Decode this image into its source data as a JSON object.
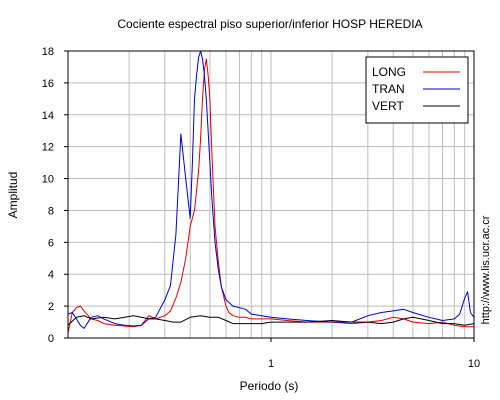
{
  "chart_data": {
    "type": "line",
    "title": "Cociente espectral piso superior/inferior  HOSP HEREDIA",
    "xlabel": "Periodo (s)",
    "ylabel": "Amplitud",
    "xscale": "log",
    "xlim": [
      0.1,
      10
    ],
    "ylim": [
      0,
      18
    ],
    "yticks": [
      0,
      2,
      4,
      6,
      8,
      10,
      12,
      14,
      16,
      18
    ],
    "xticks": [
      1,
      10
    ],
    "grid": true,
    "legend_position": "top-right",
    "watermark": "http://www.lis.ucr.ac.cr",
    "series": [
      {
        "name": "LONG",
        "color": "#e00000",
        "x": [
          0.1,
          0.105,
          0.11,
          0.115,
          0.12,
          0.13,
          0.14,
          0.15,
          0.17,
          0.19,
          0.21,
          0.23,
          0.25,
          0.27,
          0.3,
          0.32,
          0.34,
          0.36,
          0.38,
          0.4,
          0.42,
          0.44,
          0.45,
          0.46,
          0.47,
          0.48,
          0.49,
          0.5,
          0.51,
          0.52,
          0.53,
          0.55,
          0.57,
          0.6,
          0.62,
          0.65,
          0.7,
          0.75,
          0.8,
          0.9,
          1.0,
          1.2,
          1.5,
          2.0,
          2.5,
          3.0,
          3.5,
          4.0,
          4.5,
          5.0,
          6.0,
          7.0,
          8.0,
          9.0,
          10.0
        ],
        "y": [
          0.3,
          1.6,
          1.9,
          2.0,
          1.7,
          1.2,
          1.1,
          0.9,
          0.8,
          0.75,
          0.7,
          0.8,
          1.4,
          1.2,
          1.4,
          1.7,
          2.5,
          3.5,
          5.0,
          7.0,
          8.0,
          10.5,
          12.5,
          15.0,
          16.8,
          17.5,
          16.5,
          15.0,
          12.0,
          9.5,
          7.0,
          4.8,
          3.2,
          2.0,
          1.6,
          1.4,
          1.3,
          1.3,
          1.2,
          1.2,
          1.2,
          1.1,
          1.0,
          1.0,
          0.9,
          1.0,
          1.1,
          1.3,
          1.2,
          1.0,
          0.9,
          1.0,
          0.8,
          0.7,
          0.7
        ]
      },
      {
        "name": "TRAN",
        "color": "#0000cc",
        "x": [
          0.1,
          0.105,
          0.11,
          0.115,
          0.12,
          0.13,
          0.14,
          0.15,
          0.17,
          0.19,
          0.21,
          0.23,
          0.25,
          0.27,
          0.3,
          0.32,
          0.34,
          0.36,
          0.38,
          0.4,
          0.41,
          0.42,
          0.43,
          0.44,
          0.45,
          0.46,
          0.47,
          0.48,
          0.49,
          0.5,
          0.51,
          0.52,
          0.53,
          0.55,
          0.57,
          0.6,
          0.65,
          0.7,
          0.75,
          0.8,
          0.9,
          1.0,
          1.2,
          1.5,
          2.0,
          2.5,
          3.0,
          3.5,
          4.0,
          4.5,
          5.0,
          6.0,
          7.0,
          8.0,
          8.5,
          9.0,
          9.3,
          9.6,
          10.0
        ],
        "y": [
          1.5,
          1.6,
          1.2,
          0.8,
          0.6,
          1.3,
          1.4,
          1.2,
          0.9,
          0.8,
          0.75,
          0.8,
          1.2,
          1.3,
          2.4,
          3.3,
          6.5,
          12.8,
          10.0,
          7.5,
          11.0,
          15.0,
          16.5,
          17.6,
          18.0,
          17.5,
          16.5,
          15.0,
          13.0,
          11.0,
          9.0,
          7.5,
          6.0,
          4.3,
          3.2,
          2.4,
          2.0,
          1.9,
          1.8,
          1.5,
          1.4,
          1.3,
          1.2,
          1.1,
          1.0,
          1.0,
          1.4,
          1.6,
          1.7,
          1.8,
          1.6,
          1.3,
          1.1,
          1.2,
          1.5,
          2.5,
          2.9,
          1.6,
          1.3
        ]
      },
      {
        "name": "VERT",
        "color": "#000000",
        "x": [
          0.1,
          0.11,
          0.12,
          0.13,
          0.15,
          0.17,
          0.19,
          0.21,
          0.23,
          0.25,
          0.27,
          0.3,
          0.33,
          0.36,
          0.4,
          0.45,
          0.5,
          0.55,
          0.6,
          0.65,
          0.7,
          0.8,
          0.9,
          1.0,
          1.2,
          1.5,
          2.0,
          2.5,
          3.0,
          3.5,
          4.0,
          4.5,
          5.0,
          6.0,
          7.0,
          8.0,
          9.0,
          10.0
        ],
        "y": [
          0.8,
          1.3,
          1.4,
          1.2,
          1.3,
          1.2,
          1.3,
          1.4,
          1.3,
          1.2,
          1.2,
          1.1,
          1.0,
          1.0,
          1.3,
          1.4,
          1.3,
          1.3,
          1.1,
          0.9,
          0.9,
          0.9,
          0.9,
          1.0,
          1.0,
          1.0,
          1.1,
          1.0,
          1.0,
          0.9,
          1.0,
          1.2,
          1.3,
          1.1,
          0.9,
          0.9,
          0.8,
          0.9
        ]
      }
    ]
  }
}
